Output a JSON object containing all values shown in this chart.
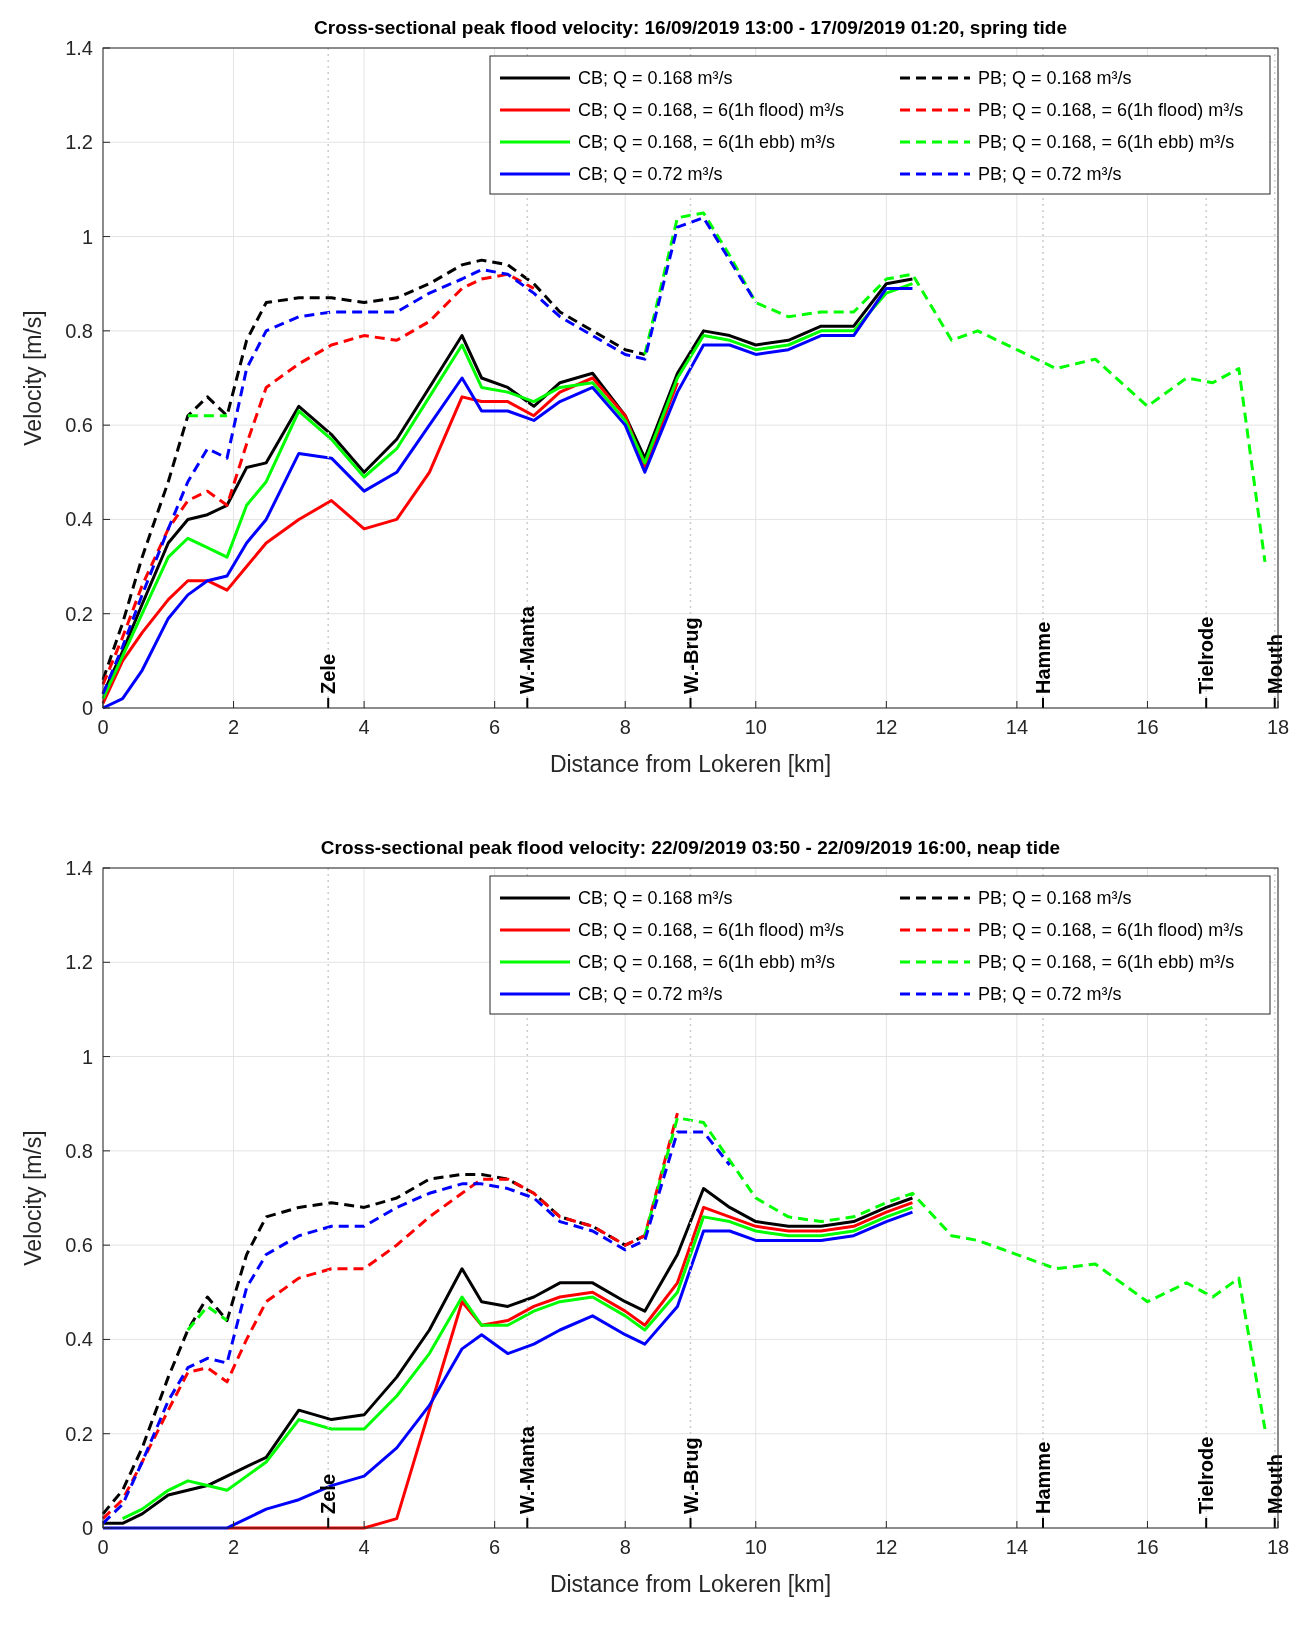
{
  "chart_data": [
    {
      "type": "line",
      "title": "Cross-sectional peak flood velocity: 16/09/2019 13:00 - 17/09/2019 01:20, spring tide",
      "xlabel": "Distance from Lokeren [km]",
      "ylabel": "Velocity [m/s]",
      "xlim": [
        0,
        18
      ],
      "xticks": [
        0,
        2,
        4,
        6,
        8,
        10,
        12,
        14,
        16,
        18
      ],
      "ylim": [
        0,
        1.4
      ],
      "yticks": [
        0,
        0.2,
        0.4,
        0.6,
        0.8,
        1,
        1.2,
        1.4
      ],
      "grid": true,
      "legend": "top right",
      "x": [
        0,
        0.3,
        0.6,
        1.0,
        1.3,
        1.6,
        1.9,
        2.2,
        2.5,
        3.0,
        3.5,
        4.0,
        4.5,
        5.0,
        5.5,
        5.8,
        6.2,
        6.6,
        7.0,
        7.5,
        8.0,
        8.3,
        8.8,
        9.2,
        9.6,
        10.0,
        10.5,
        11.0,
        11.5,
        12.0,
        12.4,
        13.0,
        13.4,
        14.0,
        14.6,
        15.2,
        16.0,
        16.6,
        17.0,
        17.4,
        17.8
      ],
      "series": [
        {
          "name": "CB; Q = 0.168 m³/s",
          "color": "#000000",
          "line_style": "solid",
          "values": [
            0.03,
            0.12,
            0.22,
            0.35,
            0.4,
            0.41,
            0.43,
            0.51,
            0.52,
            0.64,
            0.58,
            0.5,
            0.57,
            0.68,
            0.79,
            0.7,
            0.68,
            0.64,
            0.69,
            0.71,
            0.62,
            0.53,
            0.71,
            0.8,
            0.79,
            0.77,
            0.78,
            0.81,
            0.81,
            0.9,
            0.91,
            null,
            null,
            null,
            null,
            null,
            null,
            null,
            null,
            null,
            null
          ]
        },
        {
          "name": "PB; Q = 0.168 m³/s",
          "color": "#000000",
          "line_style": "dashed",
          "values": [
            0.06,
            0.18,
            0.32,
            0.48,
            0.62,
            0.66,
            0.62,
            0.78,
            0.86,
            0.87,
            0.87,
            0.86,
            0.87,
            0.9,
            0.94,
            0.95,
            0.94,
            0.9,
            0.84,
            0.8,
            0.76,
            0.75,
            null,
            null,
            null,
            null,
            null,
            null,
            null,
            null,
            null,
            null,
            null,
            null,
            null,
            null,
            null,
            null,
            null,
            null,
            null
          ]
        },
        {
          "name": "CB; Q = 0.168, = 6(1h flood) m³/s",
          "color": "#ff0000",
          "line_style": "solid",
          "values": [
            0.01,
            0.1,
            0.16,
            0.23,
            0.27,
            0.27,
            0.25,
            0.3,
            0.35,
            0.4,
            0.44,
            0.38,
            0.4,
            0.5,
            0.66,
            0.65,
            0.65,
            0.62,
            0.67,
            0.7,
            0.62,
            0.51,
            0.69,
            null,
            null,
            null,
            null,
            null,
            null,
            null,
            null,
            null,
            null,
            null,
            null,
            null,
            null,
            null,
            null,
            null,
            null
          ]
        },
        {
          "name": "PB; Q = 0.168, = 6(1h flood) m³/s",
          "color": "#ff0000",
          "line_style": "dashed",
          "values": [
            0.05,
            0.15,
            0.26,
            0.38,
            0.44,
            0.46,
            0.43,
            0.56,
            0.68,
            0.73,
            0.77,
            0.79,
            0.78,
            0.82,
            0.89,
            0.91,
            0.92,
            0.89,
            null,
            null,
            null,
            null,
            null,
            null,
            null,
            null,
            null,
            null,
            null,
            null,
            null,
            null,
            null,
            null,
            null,
            null,
            null,
            null,
            null,
            null,
            null
          ]
        },
        {
          "name": "CB; Q = 0.168, = 6(1h ebb) m³/s",
          "color": "#00ff00",
          "line_style": "solid",
          "values": [
            0.02,
            0.11,
            0.2,
            0.32,
            0.36,
            0.34,
            0.32,
            0.43,
            0.48,
            0.63,
            0.57,
            0.49,
            0.55,
            0.66,
            0.77,
            0.68,
            0.67,
            0.65,
            0.68,
            0.69,
            0.61,
            0.52,
            0.7,
            0.79,
            0.78,
            0.76,
            0.77,
            0.8,
            0.8,
            0.88,
            0.9,
            null,
            null,
            null,
            null,
            null,
            null,
            null,
            null,
            null,
            null
          ]
        },
        {
          "name": "PB; Q = 0.168, = 6(1h ebb) m³/s",
          "color": "#00ff00",
          "line_style": "dashed",
          "values": [
            null,
            null,
            null,
            null,
            0.62,
            0.62,
            0.62,
            null,
            null,
            null,
            null,
            null,
            null,
            null,
            null,
            null,
            null,
            null,
            null,
            null,
            null,
            0.75,
            1.04,
            1.05,
            0.96,
            0.86,
            0.83,
            0.84,
            0.84,
            0.91,
            0.92,
            0.78,
            0.8,
            0.76,
            0.72,
            0.74,
            0.64,
            0.7,
            0.69,
            0.72,
            0.31
          ]
        },
        {
          "name": "CB; Q = 0.72 m³/s",
          "color": "#0000ff",
          "line_style": "solid",
          "values": [
            0,
            0.02,
            0.08,
            0.19,
            0.24,
            0.27,
            0.28,
            0.35,
            0.4,
            0.54,
            0.53,
            0.46,
            0.5,
            0.6,
            0.7,
            0.63,
            0.63,
            0.61,
            0.65,
            0.68,
            0.6,
            0.5,
            0.67,
            0.77,
            0.77,
            0.75,
            0.76,
            0.79,
            0.79,
            0.89,
            0.89,
            null,
            null,
            null,
            null,
            null,
            null,
            null,
            null,
            null,
            null
          ]
        },
        {
          "name": "PB; Q = 0.72 m³/s",
          "color": "#0000ff",
          "line_style": "dashed",
          "values": [
            0.03,
            0.13,
            0.24,
            0.38,
            0.48,
            0.55,
            0.53,
            0.72,
            0.8,
            0.83,
            0.84,
            0.84,
            0.84,
            0.88,
            0.91,
            0.93,
            0.92,
            0.88,
            0.83,
            0.79,
            0.75,
            0.74,
            1.02,
            1.04,
            0.95,
            0.86,
            null,
            null,
            null,
            null,
            null,
            null,
            null,
            null,
            null,
            null,
            null,
            null,
            null,
            null,
            null
          ]
        }
      ],
      "ref_lines": [
        {
          "axis": "x",
          "value": 3.45,
          "label": "Zele",
          "color": "#cccccc",
          "line_style": "dotted"
        },
        {
          "axis": "x",
          "value": 6.5,
          "label": "W.-Manta",
          "color": "#cccccc",
          "line_style": "dotted"
        },
        {
          "axis": "x",
          "value": 9.0,
          "label": "W.-Brug",
          "color": "#cccccc",
          "line_style": "dotted"
        },
        {
          "axis": "x",
          "value": 14.4,
          "label": "Hamme",
          "color": "#cccccc",
          "line_style": "dotted"
        },
        {
          "axis": "x",
          "value": 16.9,
          "label": "Tielrode",
          "color": "#cccccc",
          "line_style": "dotted"
        },
        {
          "axis": "x",
          "value": 17.95,
          "label": "Mouth",
          "color": "#cccccc",
          "line_style": "dotted"
        }
      ]
    },
    {
      "type": "line",
      "title": "Cross-sectional peak flood velocity: 22/09/2019 03:50 - 22/09/2019 16:00, neap tide",
      "xlabel": "Distance from Lokeren [km]",
      "ylabel": "Velocity [m/s]",
      "xlim": [
        0,
        18
      ],
      "xticks": [
        0,
        2,
        4,
        6,
        8,
        10,
        12,
        14,
        16,
        18
      ],
      "ylim": [
        0,
        1.4
      ],
      "yticks": [
        0,
        0.2,
        0.4,
        0.6,
        0.8,
        1,
        1.2,
        1.4
      ],
      "grid": true,
      "legend": "top right",
      "x": [
        0,
        0.3,
        0.6,
        1.0,
        1.3,
        1.6,
        1.9,
        2.2,
        2.5,
        3.0,
        3.5,
        4.0,
        4.5,
        5.0,
        5.5,
        5.8,
        6.2,
        6.6,
        7.0,
        7.5,
        8.0,
        8.3,
        8.8,
        9.2,
        9.6,
        10.0,
        10.5,
        11.0,
        11.5,
        12.0,
        12.4,
        13.0,
        13.4,
        14.0,
        14.6,
        15.2,
        16.0,
        16.6,
        17.0,
        17.4,
        17.8
      ],
      "series": [
        {
          "name": "CB; Q = 0.168 m³/s",
          "color": "#000000",
          "line_style": "solid",
          "values": [
            0.01,
            0.01,
            0.03,
            0.07,
            0.08,
            0.09,
            0.11,
            0.13,
            0.15,
            0.25,
            0.23,
            0.24,
            0.32,
            0.42,
            0.55,
            0.48,
            0.47,
            0.49,
            0.52,
            0.52,
            0.48,
            0.46,
            0.58,
            0.72,
            0.68,
            0.65,
            0.64,
            0.64,
            0.65,
            0.68,
            0.7,
            null,
            null,
            null,
            null,
            null,
            null,
            null,
            null,
            null,
            null
          ]
        },
        {
          "name": "PB; Q = 0.168 m³/s",
          "color": "#000000",
          "line_style": "dashed",
          "values": [
            0.03,
            0.08,
            0.17,
            0.32,
            0.42,
            0.49,
            0.44,
            0.58,
            0.66,
            0.68,
            0.69,
            0.68,
            0.7,
            0.74,
            0.75,
            0.75,
            0.74,
            0.71,
            0.66,
            0.64,
            0.6,
            0.62,
            null,
            null,
            null,
            null,
            null,
            null,
            null,
            null,
            null,
            null,
            null,
            null,
            null,
            null,
            null,
            null,
            null,
            null,
            null
          ]
        },
        {
          "name": "CB; Q = 0.168, = 6(1h flood) m³/s",
          "color": "#ff0000",
          "line_style": "solid",
          "values": [
            null,
            null,
            null,
            null,
            null,
            null,
            0,
            0,
            0,
            0,
            0,
            0,
            0.02,
            0.25,
            0.48,
            0.43,
            0.44,
            0.47,
            0.49,
            0.5,
            0.46,
            0.43,
            0.52,
            0.68,
            0.66,
            0.64,
            0.63,
            0.63,
            0.64,
            0.67,
            0.69,
            null,
            null,
            null,
            null,
            null,
            null,
            null,
            null,
            null,
            null
          ]
        },
        {
          "name": "PB; Q = 0.168, = 6(1h flood) m³/s",
          "color": "#ff0000",
          "line_style": "dashed",
          "values": [
            0.02,
            0.06,
            0.14,
            0.25,
            0.33,
            0.34,
            0.31,
            0.4,
            0.48,
            0.53,
            0.55,
            0.55,
            0.6,
            0.66,
            0.71,
            0.74,
            0.74,
            0.71,
            0.66,
            0.64,
            0.6,
            0.62,
            0.88,
            null,
            null,
            null,
            null,
            null,
            null,
            null,
            null,
            null,
            null,
            null,
            null,
            null,
            null,
            null,
            null,
            null,
            null
          ]
        },
        {
          "name": "CB; Q = 0.168, = 6(1h ebb) m³/s",
          "color": "#00ff00",
          "line_style": "solid",
          "values": [
            null,
            0.02,
            0.04,
            0.08,
            0.1,
            0.09,
            0.08,
            0.11,
            0.14,
            0.23,
            0.21,
            0.21,
            0.28,
            0.37,
            0.49,
            0.43,
            0.43,
            0.46,
            0.48,
            0.49,
            0.45,
            0.42,
            0.5,
            0.66,
            0.65,
            0.63,
            0.62,
            0.62,
            0.63,
            0.66,
            0.68,
            null,
            null,
            null,
            null,
            null,
            null,
            null,
            null,
            null,
            null
          ]
        },
        {
          "name": "PB; Q = 0.168, = 6(1h ebb) m³/s",
          "color": "#00ff00",
          "line_style": "dashed",
          "values": [
            null,
            null,
            null,
            null,
            0.42,
            0.47,
            0.44,
            null,
            null,
            null,
            null,
            null,
            null,
            null,
            null,
            null,
            null,
            null,
            null,
            null,
            null,
            0.62,
            0.87,
            0.86,
            0.78,
            0.7,
            0.66,
            0.65,
            0.66,
            0.69,
            0.71,
            0.62,
            0.61,
            0.58,
            0.55,
            0.56,
            0.48,
            0.52,
            0.49,
            0.53,
            0.21
          ]
        },
        {
          "name": "CB; Q = 0.72 m³/s",
          "color": "#0000ff",
          "line_style": "solid",
          "values": [
            0,
            0,
            0,
            0,
            0,
            0,
            0,
            0.02,
            0.04,
            0.06,
            0.09,
            0.11,
            0.17,
            0.26,
            0.38,
            0.41,
            0.37,
            0.39,
            0.42,
            0.45,
            0.41,
            0.39,
            0.47,
            0.63,
            0.63,
            0.61,
            0.61,
            0.61,
            0.62,
            0.65,
            0.67,
            null,
            null,
            null,
            null,
            null,
            null,
            null,
            null,
            null,
            null
          ]
        },
        {
          "name": "PB; Q = 0.72 m³/s",
          "color": "#0000ff",
          "line_style": "dashed",
          "values": [
            0.01,
            0.05,
            0.14,
            0.27,
            0.34,
            0.36,
            0.35,
            0.51,
            0.58,
            0.62,
            0.64,
            0.64,
            0.68,
            0.71,
            0.73,
            0.73,
            0.72,
            0.7,
            0.65,
            0.63,
            0.59,
            0.61,
            0.84,
            0.84,
            0.77,
            null,
            null,
            null,
            null,
            null,
            null,
            null,
            null,
            null,
            null,
            null,
            null,
            null,
            null,
            null,
            null
          ]
        }
      ],
      "ref_lines": [
        {
          "axis": "x",
          "value": 3.45,
          "label": "Zele",
          "color": "#cccccc",
          "line_style": "dotted"
        },
        {
          "axis": "x",
          "value": 6.5,
          "label": "W.-Manta",
          "color": "#cccccc",
          "line_style": "dotted"
        },
        {
          "axis": "x",
          "value": 9.0,
          "label": "W.-Brug",
          "color": "#cccccc",
          "line_style": "dotted"
        },
        {
          "axis": "x",
          "value": 14.4,
          "label": "Hamme",
          "color": "#cccccc",
          "line_style": "dotted"
        },
        {
          "axis": "x",
          "value": 16.9,
          "label": "Tielrode",
          "color": "#cccccc",
          "line_style": "dotted"
        },
        {
          "axis": "x",
          "value": 17.95,
          "label": "Mouth",
          "color": "#cccccc",
          "line_style": "dotted"
        }
      ]
    }
  ]
}
